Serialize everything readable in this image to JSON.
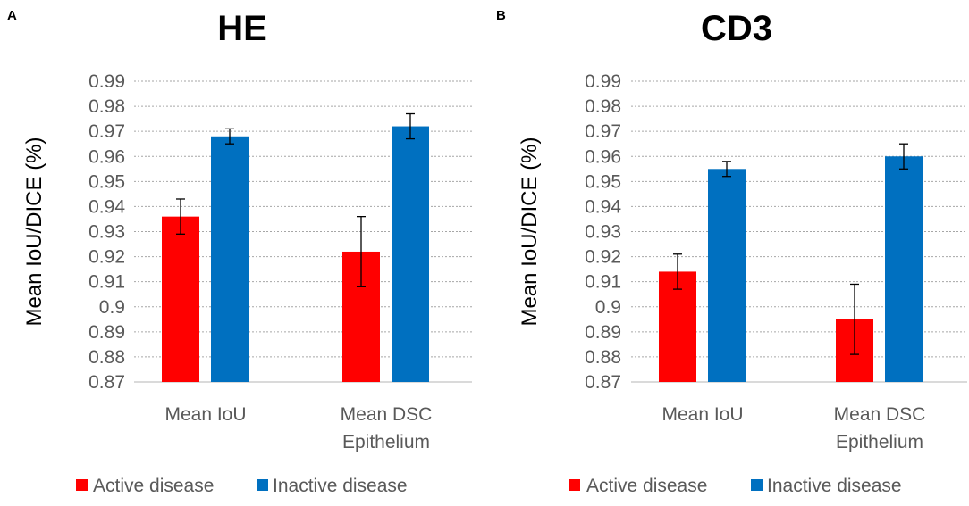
{
  "chart_data": [
    {
      "panel": "A",
      "type": "bar",
      "title": "HE",
      "xlabel": "",
      "ylabel": "Mean IoU/DICE (%)",
      "ylim": [
        0.87,
        0.99
      ],
      "yticks": [
        "0.87",
        "0.88",
        "0.89",
        "0.9",
        "0.91",
        "0.92",
        "0.93",
        "0.94",
        "0.95",
        "0.96",
        "0.97",
        "0.98",
        "0.99"
      ],
      "grid": true,
      "legend": "bottom",
      "categories": [
        [
          "Mean IoU"
        ],
        [
          "Mean DSC",
          "Epithelium"
        ]
      ],
      "series": [
        {
          "name": "Active disease",
          "color": "#ff0000",
          "values": [
            0.936,
            0.922
          ],
          "err": [
            0.007,
            0.014
          ]
        },
        {
          "name": "Inactive disease",
          "color": "#0070c0",
          "values": [
            0.968,
            0.972
          ],
          "err": [
            0.003,
            0.005
          ]
        }
      ]
    },
    {
      "panel": "B",
      "type": "bar",
      "title": "CD3",
      "xlabel": "",
      "ylabel": "Mean IoU/DICE (%)",
      "ylim": [
        0.87,
        0.99
      ],
      "yticks": [
        "0.87",
        "0.88",
        "0.89",
        "0.9",
        "0.91",
        "0.92",
        "0.93",
        "0.94",
        "0.95",
        "0.96",
        "0.97",
        "0.98",
        "0.99"
      ],
      "grid": true,
      "legend": "bottom",
      "categories": [
        [
          "Mean IoU"
        ],
        [
          "Mean DSC",
          "Epithelium"
        ]
      ],
      "series": [
        {
          "name": "Active disease",
          "color": "#ff0000",
          "values": [
            0.914,
            0.895
          ],
          "err": [
            0.007,
            0.014
          ]
        },
        {
          "name": "Inactive disease",
          "color": "#0070c0",
          "values": [
            0.955,
            0.96
          ],
          "err": [
            0.003,
            0.005
          ]
        }
      ]
    }
  ]
}
